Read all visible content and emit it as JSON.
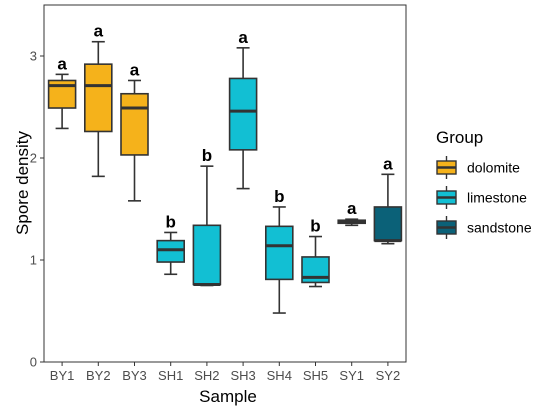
{
  "chart_data": {
    "type": "box",
    "xlabel": "Sample",
    "ylabel": "Spore density",
    "ylim": [
      0,
      3.5
    ],
    "yticks": [
      0,
      1,
      2,
      3
    ],
    "grid": false,
    "legend_position": "right",
    "legend_title": "Group",
    "groups": [
      {
        "name": "dolomite",
        "color": "#F5B21B"
      },
      {
        "name": "limestone",
        "color": "#12BFD3"
      },
      {
        "name": "sandstone",
        "color": "#0B6178"
      }
    ],
    "boxes": [
      {
        "category": "BY1",
        "group": "dolomite",
        "whisker_low": 2.29,
        "q1": 2.49,
        "median": 2.71,
        "q3": 2.76,
        "whisker_high": 2.82,
        "sig": "a"
      },
      {
        "category": "BY2",
        "group": "dolomite",
        "whisker_low": 1.82,
        "q1": 2.26,
        "median": 2.71,
        "q3": 2.92,
        "whisker_high": 3.14,
        "sig": "a"
      },
      {
        "category": "BY3",
        "group": "dolomite",
        "whisker_low": 1.58,
        "q1": 2.03,
        "median": 2.49,
        "q3": 2.63,
        "whisker_high": 2.76,
        "sig": "a"
      },
      {
        "category": "SH1",
        "group": "limestone",
        "whisker_low": 0.86,
        "q1": 0.98,
        "median": 1.1,
        "q3": 1.19,
        "whisker_high": 1.27,
        "sig": "b"
      },
      {
        "category": "SH2",
        "group": "limestone",
        "whisker_low": 0.75,
        "q1": 0.76,
        "median": 0.76,
        "q3": 1.34,
        "whisker_high": 1.92,
        "sig": "b"
      },
      {
        "category": "SH3",
        "group": "limestone",
        "whisker_low": 1.7,
        "q1": 2.08,
        "median": 2.46,
        "q3": 2.78,
        "whisker_high": 3.08,
        "sig": "a"
      },
      {
        "category": "SH4",
        "group": "limestone",
        "whisker_low": 0.48,
        "q1": 0.81,
        "median": 1.14,
        "q3": 1.33,
        "whisker_high": 1.52,
        "sig": "b"
      },
      {
        "category": "SH5",
        "group": "limestone",
        "whisker_low": 0.74,
        "q1": 0.78,
        "median": 0.83,
        "q3": 1.03,
        "whisker_high": 1.23,
        "sig": "b"
      },
      {
        "category": "SY1",
        "group": "sandstone",
        "whisker_low": 1.34,
        "q1": 1.36,
        "median": 1.38,
        "q3": 1.39,
        "whisker_high": 1.4,
        "sig": "a"
      },
      {
        "category": "SY2",
        "group": "sandstone",
        "whisker_low": 1.16,
        "q1": 1.19,
        "median": 1.19,
        "q3": 1.52,
        "whisker_high": 1.84,
        "sig": "a"
      }
    ]
  }
}
